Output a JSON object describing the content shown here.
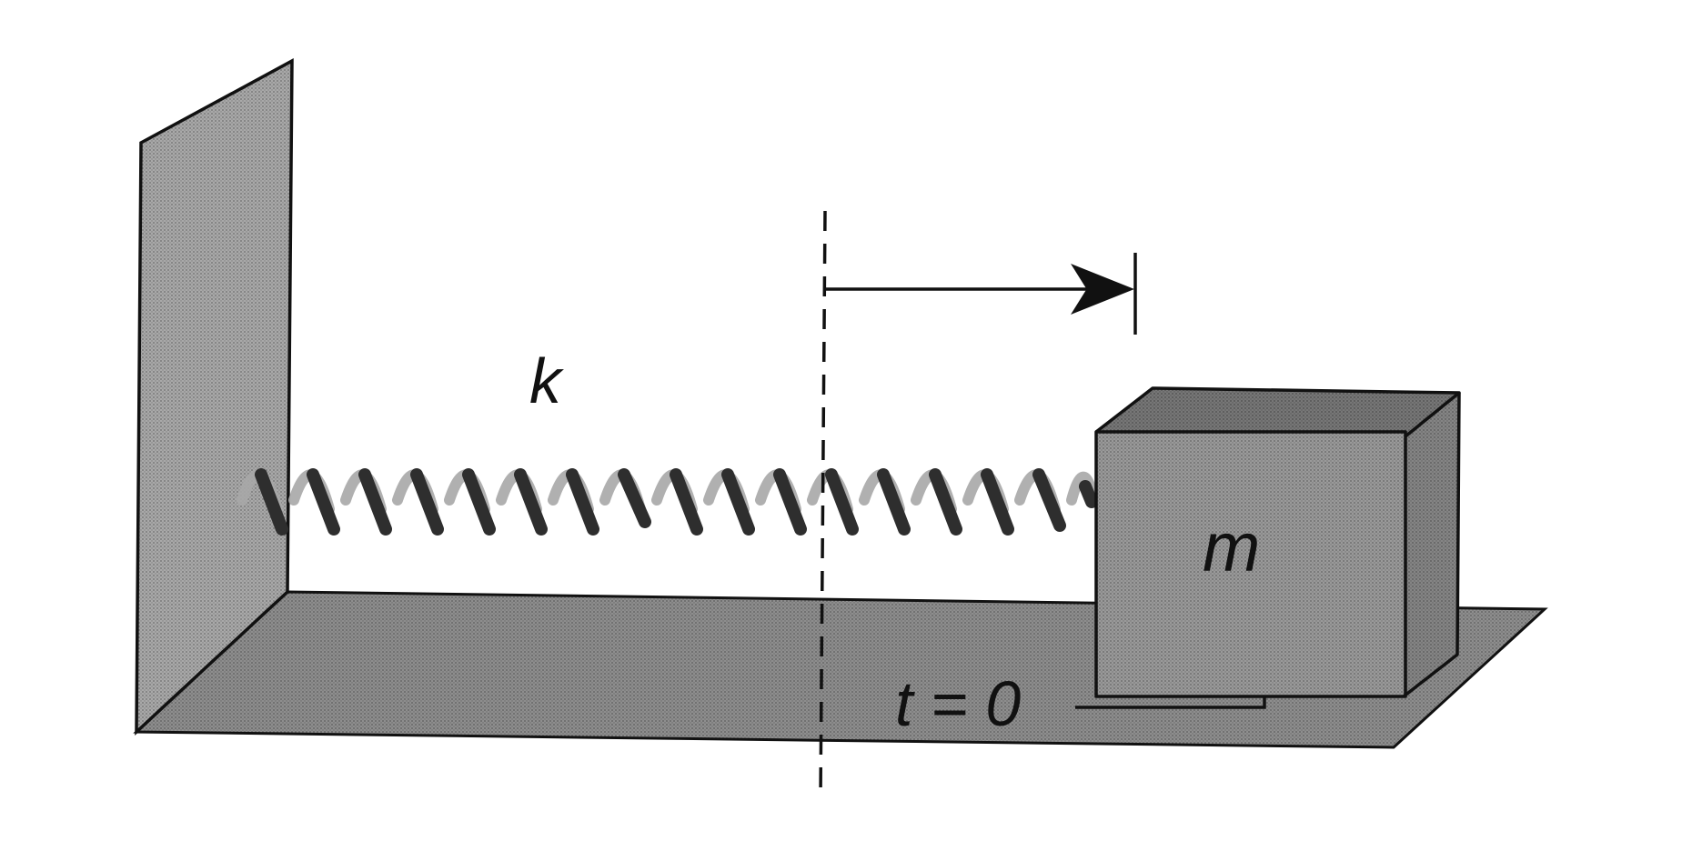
{
  "labels": {
    "spring_constant": "k",
    "mass": "m",
    "time_marker": "t = 0"
  },
  "colors": {
    "ink": "#111111",
    "floor": "#8e8e8e",
    "wall": "#a9a9a9",
    "block_front": "#9a9a9a",
    "block_top": "#777777",
    "block_side": "#858585",
    "coil": "#2e2e2e"
  }
}
